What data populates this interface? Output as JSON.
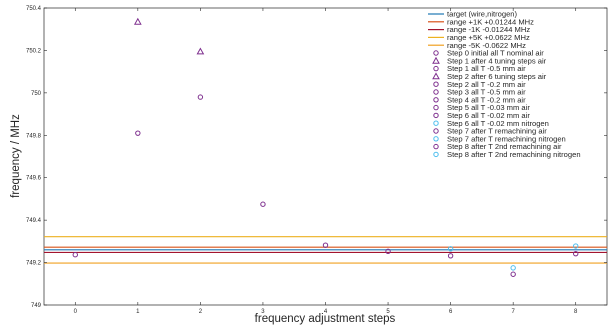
{
  "chart_data": {
    "type": "scatter",
    "title": "",
    "xlabel": "frequency adjustment steps",
    "ylabel": "frequency / MHz",
    "xlim": [
      -0.5,
      8.5
    ],
    "ylim": [
      749.0,
      750.4
    ],
    "x_ticks": [
      "0",
      "1",
      "2",
      "3",
      "4",
      "5",
      "6",
      "7",
      "8"
    ],
    "y_ticks": [
      "749",
      "749.2",
      "749.4",
      "749.6",
      "749.8",
      "750",
      "750.2",
      "750.4"
    ],
    "grid": false,
    "legend_position": "top-right",
    "reference_lines": [
      {
        "name": "target (wire,nitrogen)",
        "y": 749.26,
        "color": "#1f77b4"
      },
      {
        "name": "range +1K +0.01244 MHz",
        "y": 749.2724,
        "color": "#d95319"
      },
      {
        "name": "range -1K -0.01244 MHz",
        "y": 749.2476,
        "color": "#a2142f"
      },
      {
        "name": "range +5K +0.0622 MHz",
        "y": 749.3222,
        "color": "#edb120"
      },
      {
        "name": "range -5K -0.0622 MHz",
        "y": 749.1978,
        "color": "#f0a020"
      }
    ],
    "series": [
      {
        "name": "Step 0  initial all T nominal air",
        "marker": "circle",
        "color": "#7e2f8e",
        "points": [
          [
            0,
            749.237
          ]
        ]
      },
      {
        "name": "Step 1  after 4 tuning steps air",
        "marker": "triangle",
        "color": "#7e2f8e",
        "points": [
          [
            1,
            750.335
          ]
        ]
      },
      {
        "name": "Step 1  all T -0.5 mm air",
        "marker": "circle",
        "color": "#7e2f8e",
        "points": [
          [
            1,
            749.81
          ]
        ]
      },
      {
        "name": "Step 2  after 6 tuning steps air",
        "marker": "triangle",
        "color": "#7e2f8e",
        "points": [
          [
            2,
            750.195
          ]
        ]
      },
      {
        "name": "Step 2  all T -0.2 mm air",
        "marker": "circle",
        "color": "#7e2f8e",
        "points": [
          [
            2,
            749.98
          ]
        ]
      },
      {
        "name": "Step 3  all T -0.5 mm air",
        "marker": "circle",
        "color": "#7e2f8e",
        "points": [
          [
            3,
            749.475
          ]
        ]
      },
      {
        "name": "Step 4  all T -0.2 mm air",
        "marker": "circle",
        "color": "#7e2f8e",
        "points": [
          [
            4,
            749.282
          ]
        ]
      },
      {
        "name": "Step 5  all T -0.03 mm air",
        "marker": "circle",
        "color": "#7e2f8e",
        "points": [
          [
            5,
            749.253
          ]
        ]
      },
      {
        "name": "Step 6  all T -0.02 mm air",
        "marker": "circle",
        "color": "#7e2f8e",
        "points": [
          [
            6,
            749.232
          ]
        ]
      },
      {
        "name": "Step 6  all T -0.02 mm nitrogen",
        "marker": "circle",
        "color": "#4dbeee",
        "points": [
          [
            6,
            749.265
          ]
        ]
      },
      {
        "name": "Step 7  after T remachining air",
        "marker": "circle",
        "color": "#7e2f8e",
        "points": [
          [
            7,
            749.145
          ]
        ]
      },
      {
        "name": "Step 7  after T remachining nitrogen",
        "marker": "circle",
        "color": "#4dbeee",
        "points": [
          [
            7,
            749.175
          ]
        ]
      },
      {
        "name": "Step 8  after T 2nd remachining air",
        "marker": "circle",
        "color": "#7e2f8e",
        "points": [
          [
            8,
            749.242
          ]
        ]
      },
      {
        "name": "Step 8  after T 2nd remachining nitrogen",
        "marker": "circle",
        "color": "#4dbeee",
        "points": [
          [
            8,
            749.278
          ]
        ]
      }
    ]
  }
}
